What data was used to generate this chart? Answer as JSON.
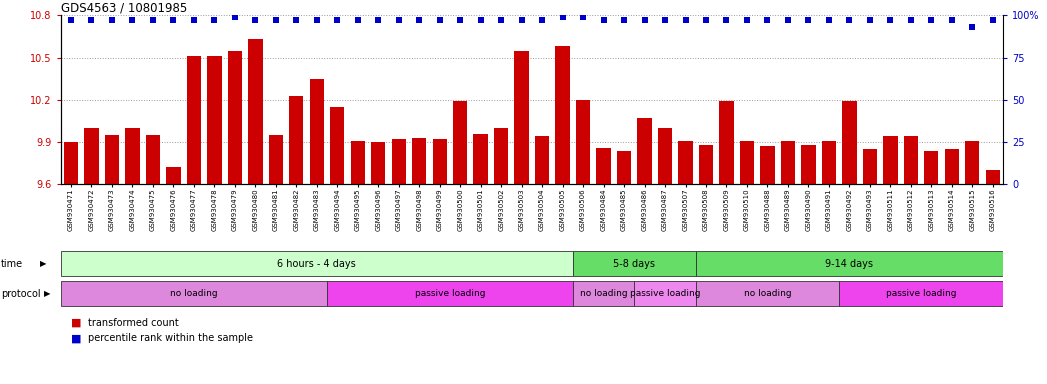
{
  "title": "GDS4563 / 10801985",
  "categories": [
    "GSM930471",
    "GSM930472",
    "GSM930473",
    "GSM930474",
    "GSM930475",
    "GSM930476",
    "GSM930477",
    "GSM930478",
    "GSM930479",
    "GSM930480",
    "GSM930481",
    "GSM930482",
    "GSM930483",
    "GSM930494",
    "GSM930495",
    "GSM930496",
    "GSM930497",
    "GSM930498",
    "GSM930499",
    "GSM930500",
    "GSM930501",
    "GSM930502",
    "GSM930503",
    "GSM930504",
    "GSM930505",
    "GSM930506",
    "GSM930484",
    "GSM930485",
    "GSM930486",
    "GSM930487",
    "GSM930507",
    "GSM930508",
    "GSM930509",
    "GSM930510",
    "GSM930488",
    "GSM930489",
    "GSM930490",
    "GSM930491",
    "GSM930492",
    "GSM930493",
    "GSM930511",
    "GSM930512",
    "GSM930513",
    "GSM930514",
    "GSM930515",
    "GSM930516"
  ],
  "bar_values": [
    9.9,
    10.0,
    9.95,
    10.0,
    9.95,
    9.72,
    10.51,
    10.51,
    10.55,
    10.63,
    9.95,
    10.23,
    10.35,
    10.15,
    9.91,
    9.9,
    9.92,
    9.93,
    9.92,
    10.19,
    9.96,
    10.0,
    10.55,
    9.94,
    10.58,
    10.2,
    9.86,
    9.84,
    10.07,
    10.0,
    9.91,
    9.88,
    10.19,
    9.91,
    9.87,
    9.91,
    9.88,
    9.91,
    10.19,
    9.85,
    9.94,
    9.94,
    9.84,
    9.85,
    9.91,
    9.7
  ],
  "percentile_values": [
    97,
    97,
    97,
    97,
    97,
    97,
    97,
    97,
    99,
    97,
    97,
    97,
    97,
    97,
    97,
    97,
    97,
    97,
    97,
    97,
    97,
    97,
    97,
    97,
    99,
    99,
    97,
    97,
    97,
    97,
    97,
    97,
    97,
    97,
    97,
    97,
    97,
    97,
    97,
    97,
    97,
    97,
    97,
    97,
    93,
    97
  ],
  "ylim_left": [
    9.6,
    10.8
  ],
  "ylim_right": [
    0,
    100
  ],
  "yticks_left": [
    9.6,
    9.9,
    10.2,
    10.5,
    10.8
  ],
  "yticks_right": [
    0,
    25,
    50,
    75,
    100
  ],
  "bar_color": "#cc0000",
  "percentile_color": "#0000cc",
  "background_color": "#ffffff",
  "grid_color": "#999999",
  "time_groups": [
    {
      "label": "6 hours - 4 days",
      "start": 0,
      "end": 25,
      "color": "#ccffcc"
    },
    {
      "label": "5-8 days",
      "start": 25,
      "end": 31,
      "color": "#66dd66"
    },
    {
      "label": "9-14 days",
      "start": 31,
      "end": 46,
      "color": "#66dd66"
    }
  ],
  "protocol_groups": [
    {
      "label": "no loading",
      "start": 0,
      "end": 13,
      "color": "#dd88dd"
    },
    {
      "label": "passive loading",
      "start": 13,
      "end": 25,
      "color": "#ee44ee"
    },
    {
      "label": "no loading",
      "start": 25,
      "end": 28,
      "color": "#dd88dd"
    },
    {
      "label": "passive loading",
      "start": 28,
      "end": 31,
      "color": "#ee88ee"
    },
    {
      "label": "no loading",
      "start": 31,
      "end": 38,
      "color": "#dd88dd"
    },
    {
      "label": "passive loading",
      "start": 38,
      "end": 46,
      "color": "#ee44ee"
    }
  ]
}
